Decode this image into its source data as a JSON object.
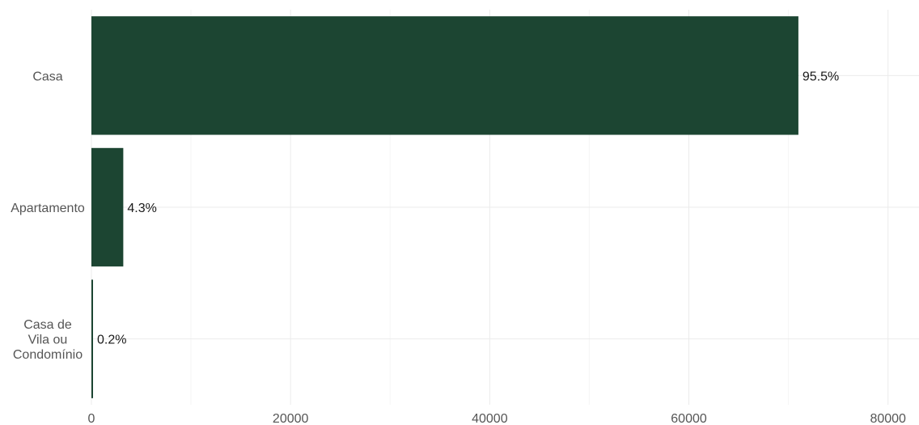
{
  "chart_data": {
    "type": "bar",
    "orientation": "horizontal",
    "categories": [
      [
        "Casa"
      ],
      [
        "Apartamento"
      ],
      [
        "Casa de",
        "Vila ou",
        "Condomínio"
      ]
    ],
    "values": [
      71000,
      3200,
      150
    ],
    "labels": [
      "95.5%",
      "4.3%",
      "0.2%"
    ],
    "x_ticks": [
      "0",
      "20000",
      "40000",
      "60000",
      "80000"
    ],
    "xlim": [
      0,
      81000
    ],
    "grid": true,
    "bar_color": "#1c4532",
    "title": "",
    "xlabel": "",
    "ylabel": ""
  }
}
